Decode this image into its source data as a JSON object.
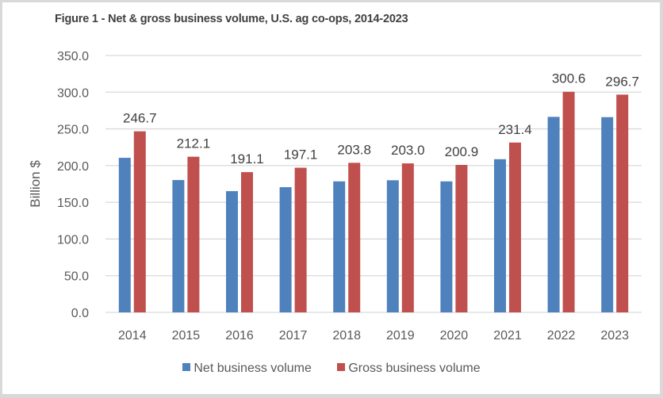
{
  "chart_data": {
    "type": "bar",
    "title": "Figure 1 - Net & gross business volume, U.S. ag co-ops, 2014-2023",
    "xlabel": "",
    "ylabel": "Billion $",
    "ylim": [
      0,
      350
    ],
    "yticks": [
      "0.0",
      "50.0",
      "100.0",
      "150.0",
      "200.0",
      "250.0",
      "300.0",
      "350.0"
    ],
    "grid": true,
    "legend_position": "bottom",
    "categories": [
      "2014",
      "2015",
      "2016",
      "2017",
      "2018",
      "2019",
      "2020",
      "2021",
      "2022",
      "2023"
    ],
    "series": [
      {
        "name": "Net business volume",
        "color": "#4f81bd",
        "values": [
          210.6,
          180.3,
          165.2,
          170.6,
          178.5,
          180.0,
          178.5,
          208.7,
          266.4,
          266.0
        ],
        "labels_shown": false
      },
      {
        "name": "Gross business volume",
        "color": "#c0504d",
        "values": [
          246.7,
          212.1,
          191.1,
          197.1,
          203.8,
          203.0,
          200.9,
          231.4,
          300.6,
          296.7
        ],
        "labels_shown": true,
        "data_labels": [
          "246.7",
          "212.1",
          "191.1",
          "197.1",
          "203.8",
          "203.0",
          "200.9",
          "231.4",
          "300.6",
          "296.7"
        ]
      }
    ]
  }
}
